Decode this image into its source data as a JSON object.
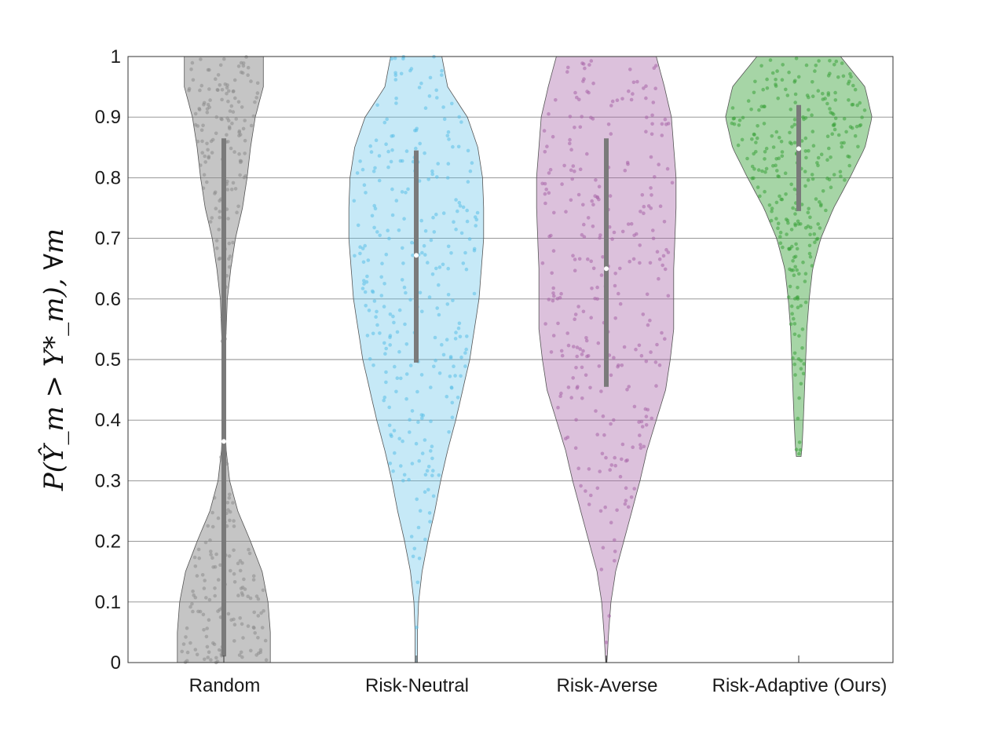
{
  "chart_data": {
    "type": "violin",
    "title": "",
    "xlabel": "",
    "ylabel": "P(Ŷ_m > Y*_m),  ∀m",
    "ylim": [
      0,
      1
    ],
    "yticks": [
      "0",
      "0.1",
      "0.2",
      "0.3",
      "0.4",
      "0.5",
      "0.6",
      "0.7",
      "0.8",
      "0.9",
      "1"
    ],
    "grid": "horizontal",
    "categories": [
      "Random",
      "Risk-Neutral",
      "Risk-Averse",
      "Risk-Adaptive (Ours)"
    ],
    "series": [
      {
        "category": "Random",
        "color": "#8c8c8c",
        "fill_opacity": 0.5,
        "median": 0.365,
        "q1": 0.01,
        "q3": 0.865,
        "y_range": [
          0,
          1
        ],
        "density": [
          [
            0.0,
            0.4
          ],
          [
            0.05,
            0.4
          ],
          [
            0.1,
            0.38
          ],
          [
            0.15,
            0.33
          ],
          [
            0.2,
            0.23
          ],
          [
            0.25,
            0.12
          ],
          [
            0.3,
            0.05
          ],
          [
            0.35,
            0.02
          ],
          [
            0.4,
            0.01
          ],
          [
            0.45,
            0.01
          ],
          [
            0.5,
            0.01
          ],
          [
            0.55,
            0.02
          ],
          [
            0.6,
            0.03
          ],
          [
            0.65,
            0.06
          ],
          [
            0.7,
            0.1
          ],
          [
            0.75,
            0.16
          ],
          [
            0.8,
            0.2
          ],
          [
            0.85,
            0.23
          ],
          [
            0.9,
            0.27
          ],
          [
            0.95,
            0.34
          ],
          [
            1.0,
            0.34
          ]
        ],
        "n_points": 300
      },
      {
        "category": "Risk-Neutral",
        "color": "#5bbfe8",
        "fill_opacity": 0.35,
        "median": 0.672,
        "q1": 0.495,
        "q3": 0.845,
        "y_range": [
          0,
          1
        ],
        "density": [
          [
            0.0,
            0.01
          ],
          [
            0.05,
            0.01
          ],
          [
            0.1,
            0.02
          ],
          [
            0.15,
            0.05
          ],
          [
            0.2,
            0.1
          ],
          [
            0.25,
            0.16
          ],
          [
            0.3,
            0.21
          ],
          [
            0.35,
            0.27
          ],
          [
            0.4,
            0.34
          ],
          [
            0.45,
            0.4
          ],
          [
            0.5,
            0.46
          ],
          [
            0.55,
            0.5
          ],
          [
            0.6,
            0.54
          ],
          [
            0.65,
            0.56
          ],
          [
            0.7,
            0.58
          ],
          [
            0.75,
            0.58
          ],
          [
            0.8,
            0.57
          ],
          [
            0.85,
            0.53
          ],
          [
            0.9,
            0.44
          ],
          [
            0.95,
            0.27
          ],
          [
            1.0,
            0.22
          ]
        ],
        "n_points": 300
      },
      {
        "category": "Risk-Averse",
        "color": "#a765a8",
        "fill_opacity": 0.4,
        "median": 0.65,
        "q1": 0.455,
        "q3": 0.865,
        "y_range": [
          0,
          1
        ],
        "density": [
          [
            0.0,
            0.005
          ],
          [
            0.05,
            0.02
          ],
          [
            0.1,
            0.04
          ],
          [
            0.15,
            0.08
          ],
          [
            0.2,
            0.15
          ],
          [
            0.25,
            0.22
          ],
          [
            0.3,
            0.29
          ],
          [
            0.35,
            0.35
          ],
          [
            0.4,
            0.43
          ],
          [
            0.45,
            0.51
          ],
          [
            0.5,
            0.55
          ],
          [
            0.55,
            0.58
          ],
          [
            0.6,
            0.58
          ],
          [
            0.65,
            0.58
          ],
          [
            0.7,
            0.59
          ],
          [
            0.75,
            0.6
          ],
          [
            0.8,
            0.6
          ],
          [
            0.85,
            0.58
          ],
          [
            0.9,
            0.56
          ],
          [
            0.95,
            0.5
          ],
          [
            1.0,
            0.43
          ]
        ],
        "n_points": 300
      },
      {
        "category": "Risk-Adaptive (Ours)",
        "color": "#3aa23a",
        "fill_opacity": 0.45,
        "median": 0.848,
        "q1": 0.745,
        "q3": 0.92,
        "y_range": [
          0.34,
          1
        ],
        "density": [
          [
            0.34,
            0.02
          ],
          [
            0.36,
            0.03
          ],
          [
            0.4,
            0.04
          ],
          [
            0.45,
            0.05
          ],
          [
            0.5,
            0.06
          ],
          [
            0.55,
            0.07
          ],
          [
            0.6,
            0.09
          ],
          [
            0.65,
            0.12
          ],
          [
            0.7,
            0.19
          ],
          [
            0.75,
            0.3
          ],
          [
            0.8,
            0.44
          ],
          [
            0.85,
            0.57
          ],
          [
            0.9,
            0.63
          ],
          [
            0.95,
            0.57
          ],
          [
            1.0,
            0.36
          ]
        ],
        "n_points": 300
      }
    ]
  }
}
